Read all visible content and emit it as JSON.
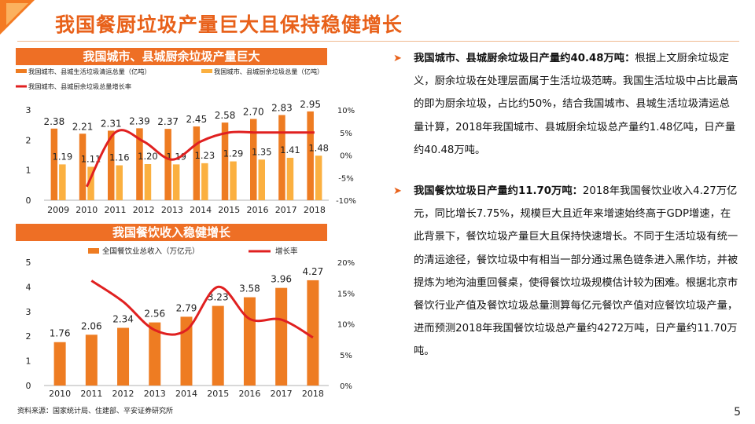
{
  "page": {
    "title": "我国餐厨垃圾产量巨大且保持稳健增长",
    "source": "资料来源：国家统计局、住建部、平安证券研究所",
    "page_number": "5"
  },
  "colors": {
    "accent": "#ee6f25",
    "bar_orange": "#ee7c22",
    "bar_yellow": "#fbb040",
    "line_red": "#e02020"
  },
  "chart_data": [
    {
      "type": "bar",
      "title": "我国城市、县城厨余垃圾产量巨大",
      "categories": [
        "2009",
        "2010",
        "2011",
        "2012",
        "2013",
        "2014",
        "2015",
        "2016",
        "2017",
        "2018"
      ],
      "series": [
        {
          "name": "我国城市、县城生活垃圾清运总量（亿吨）",
          "values": [
            2.38,
            2.21,
            2.31,
            2.39,
            2.37,
            2.45,
            2.58,
            2.7,
            2.83,
            2.95
          ],
          "axis": "left"
        },
        {
          "name": "我国城市、县城厨余垃圾总量（亿吨）",
          "values": [
            1.19,
            1.11,
            1.16,
            1.2,
            1.19,
            1.23,
            1.29,
            1.35,
            1.41,
            1.48
          ],
          "axis": "left"
        },
        {
          "name": "我国城市、县城厨余垃圾总量增长率",
          "type": "line",
          "values": [
            null,
            -7,
            5,
            3,
            -1,
            3,
            5,
            5,
            5,
            5
          ],
          "axis": "right"
        }
      ],
      "label_values": [
        "2.38",
        "2.21",
        "2.31",
        "2.39",
        "2.37",
        "2.45",
        "2.58",
        "2.70",
        "2.83",
        "2.95"
      ],
      "label_values2": [
        "1.19",
        "1.11",
        "1.16",
        "1.20",
        "1.19",
        "1.23",
        "1.29",
        "1.35",
        "1.41",
        "1.48"
      ],
      "ylim": [
        0,
        3
      ],
      "y_ticks": [
        "0",
        "1",
        "2",
        "3"
      ],
      "y2lim": [
        -10,
        10
      ],
      "y2_ticks": [
        "10%",
        "5%",
        "0%",
        "-5%",
        "-10%"
      ]
    },
    {
      "type": "bar",
      "title": "我国餐饮收入稳健增长",
      "categories": [
        "2010",
        "2011",
        "2012",
        "2013",
        "2014",
        "2015",
        "2016",
        "2017",
        "2018"
      ],
      "series": [
        {
          "name": "全国餐饮业总收入（万亿元）",
          "values": [
            1.76,
            2.06,
            2.34,
            2.56,
            2.79,
            3.23,
            3.58,
            3.96,
            4.27
          ],
          "axis": "left"
        },
        {
          "name": "增长率",
          "type": "line",
          "values": [
            null,
            17,
            13.6,
            9,
            9,
            16,
            10.8,
            10.7,
            7.8
          ],
          "axis": "right"
        }
      ],
      "label_values": [
        "1.76",
        "2.06",
        "2.34",
        "2.56",
        "2.79",
        "3.23",
        "3.58",
        "3.96",
        "4.27"
      ],
      "ylim": [
        0,
        5
      ],
      "y_ticks": [
        "0",
        "1",
        "2",
        "3",
        "4",
        "5"
      ],
      "y2lim": [
        0,
        20
      ],
      "y2_ticks": [
        "20%",
        "15%",
        "10%",
        "5%",
        "0%"
      ]
    }
  ],
  "bullets": [
    {
      "bold": "我国城市、县城厨余垃圾日产量约40.48万吨：",
      "text": "根据上文厨余垃圾定义，厨余垃圾在处理层面属于生活垃圾范畴。我国生活垃圾中占比最高的即为厨余垃圾，占比约50%，结合我国城市、县城生活垃圾清运总量计算，2018年我国城市、县城厨余垃圾总产量约1.48亿吨，日产量约40.48万吨。"
    },
    {
      "bold": "我国餐饮垃圾日产量约11.70万吨：",
      "text": "2018年我国餐饮业收入4.27万亿元，同比增长7.75%，规模巨大且近年来增速始终高于GDP增速，在此背景下，餐饮垃圾产量巨大且保持快速增长。不同于生活垃圾有统一的清运途径，餐饮垃圾中有相当一部分通过黑色链条进入黑作坊，并被提炼为地沟油重回餐桌，使得餐饮垃圾规模估计较为困难。根据北京市餐饮行业产值及餐饮垃圾总量测算每亿元餐饮产值对应餐饮垃圾产量，进而预测2018年我国餐饮垃圾总产量约4272万吨，日产量约11.70万吨。"
    }
  ]
}
